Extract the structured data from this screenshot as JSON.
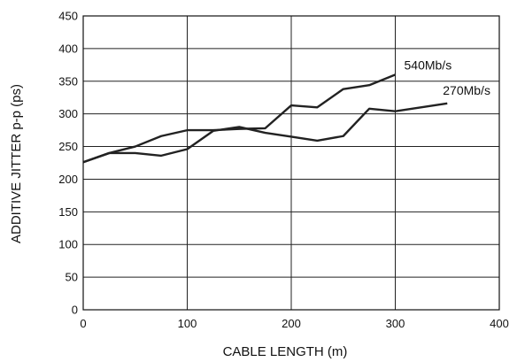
{
  "chart_data": {
    "type": "line",
    "title": "",
    "xlabel": "CABLE LENGTH (m)",
    "ylabel": "ADDITIVE JITTER p-p (ps)",
    "xlim": [
      0,
      400
    ],
    "ylim": [
      0,
      450
    ],
    "x_ticks": [
      0,
      100,
      200,
      300,
      400
    ],
    "y_ticks": [
      0,
      50,
      100,
      150,
      200,
      250,
      300,
      350,
      400,
      450
    ],
    "grid": {
      "vertical": true,
      "horizontal": true
    },
    "line_color": "#222222",
    "series": [
      {
        "name": "540Mb/s",
        "x": [
          0,
          25,
          50,
          75,
          100,
          125,
          150,
          175,
          200,
          225,
          250,
          275,
          300
        ],
        "y": [
          226,
          240,
          250,
          266,
          275,
          275,
          277,
          278,
          313,
          310,
          338,
          344,
          360
        ]
      },
      {
        "name": "270Mb/s",
        "x": [
          0,
          25,
          50,
          75,
          100,
          125,
          150,
          175,
          200,
          225,
          250,
          275,
          300,
          350
        ],
        "y": [
          226,
          240,
          240,
          236,
          246,
          274,
          280,
          271,
          265,
          259,
          266,
          308,
          304,
          316
        ]
      }
    ]
  }
}
